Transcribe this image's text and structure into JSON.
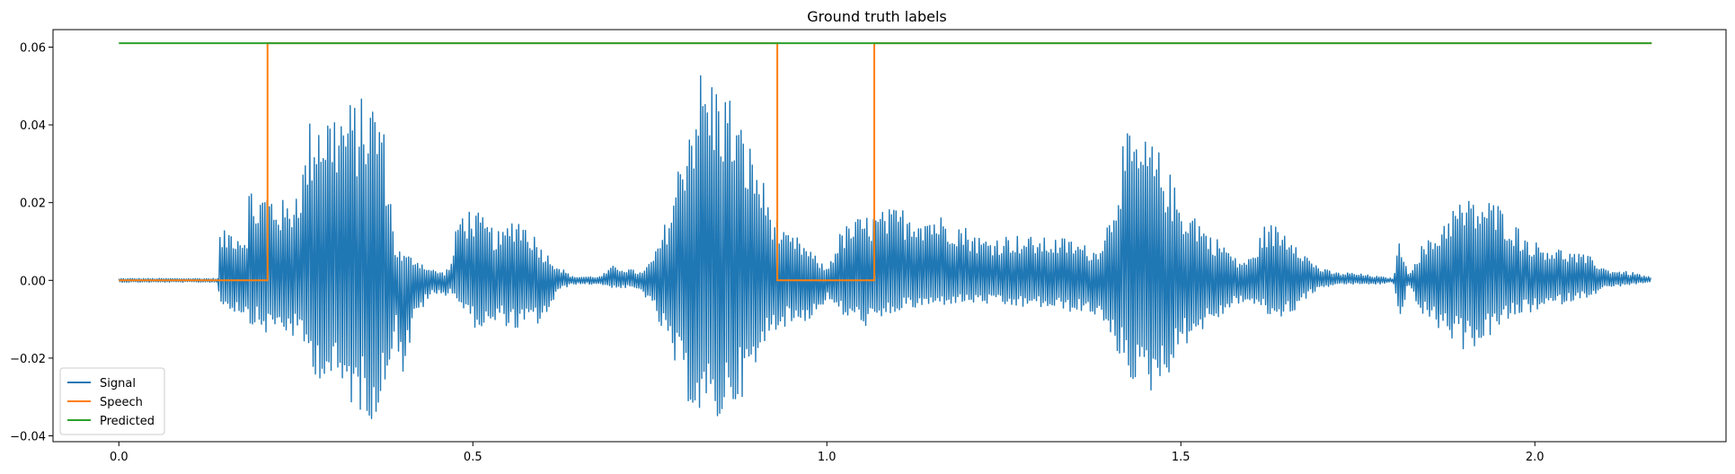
{
  "chart_data": {
    "type": "line",
    "title": "Ground truth labels",
    "xlabel": "",
    "ylabel": "",
    "xlim": [
      -0.093,
      2.27
    ],
    "ylim": [
      -0.0415,
      0.0645
    ],
    "xticks": [
      0.0,
      0.5,
      1.0,
      1.5,
      2.0
    ],
    "xtick_labels": [
      "0.0",
      "0.5",
      "1.0",
      "1.5",
      "2.0"
    ],
    "yticks": [
      -0.04,
      -0.02,
      0.0,
      0.02,
      0.04,
      0.06
    ],
    "ytick_labels": [
      "−0.04",
      "−0.02",
      "0.00",
      "0.02",
      "0.04",
      "0.06"
    ],
    "grid": false,
    "legend_position": "lower-left",
    "series": [
      {
        "name": "Signal",
        "color": "#1f77b4",
        "kind": "waveform",
        "x_start": 0.0,
        "x_end": 2.165,
        "envelope": {
          "x": [
            0.0,
            0.14,
            0.142,
            0.16,
            0.18,
            0.185,
            0.19,
            0.2,
            0.21,
            0.22,
            0.24,
            0.26,
            0.27,
            0.28,
            0.3,
            0.32,
            0.34,
            0.36,
            0.37,
            0.38,
            0.39,
            0.4,
            0.42,
            0.44,
            0.46,
            0.47,
            0.48,
            0.5,
            0.52,
            0.54,
            0.56,
            0.58,
            0.6,
            0.62,
            0.64,
            0.66,
            0.68,
            0.7,
            0.72,
            0.74,
            0.76,
            0.78,
            0.8,
            0.82,
            0.84,
            0.86,
            0.88,
            0.9,
            0.92,
            0.94,
            0.96,
            0.98,
            1.0,
            1.02,
            1.04,
            1.06,
            1.08,
            1.1,
            1.14,
            1.18,
            1.22,
            1.26,
            1.3,
            1.34,
            1.38,
            1.4,
            1.42,
            1.44,
            1.46,
            1.48,
            1.5,
            1.52,
            1.54,
            1.56,
            1.58,
            1.6,
            1.62,
            1.64,
            1.66,
            1.68,
            1.7,
            1.72,
            1.74,
            1.76,
            1.78,
            1.8,
            1.81,
            1.82,
            1.84,
            1.86,
            1.88,
            1.9,
            1.92,
            1.94,
            1.96,
            1.98,
            2.0,
            2.02,
            2.04,
            2.06,
            2.08,
            2.1,
            2.14,
            2.165
          ],
          "upper": [
            0.0005,
            0.0005,
            0.012,
            0.014,
            0.012,
            0.028,
            0.02,
            0.023,
            0.024,
            0.022,
            0.02,
            0.03,
            0.042,
            0.046,
            0.045,
            0.046,
            0.047,
            0.048,
            0.046,
            0.03,
            0.01,
            0.007,
            0.006,
            0.003,
            0.002,
            0.005,
            0.018,
            0.019,
            0.015,
            0.012,
            0.018,
            0.014,
            0.008,
            0.004,
            0.001,
            0.001,
            0.001,
            0.004,
            0.003,
            0.002,
            0.008,
            0.02,
            0.04,
            0.055,
            0.053,
            0.05,
            0.04,
            0.032,
            0.02,
            0.012,
            0.011,
            0.007,
            0.003,
            0.013,
            0.016,
            0.017,
            0.018,
            0.019,
            0.018,
            0.016,
            0.011,
            0.012,
            0.011,
            0.011,
            0.008,
            0.017,
            0.038,
            0.037,
            0.036,
            0.03,
            0.02,
            0.018,
            0.012,
            0.01,
            0.005,
            0.006,
            0.015,
            0.014,
            0.012,
            0.006,
            0.003,
            0.002,
            0.002,
            0.0015,
            0.001,
            0.0005,
            0.012,
            0.0015,
            0.009,
            0.012,
            0.019,
            0.021,
            0.021,
            0.021,
            0.018,
            0.013,
            0.01,
            0.009,
            0.008,
            0.007,
            0.006,
            0.003,
            0.002,
            0.0007
          ],
          "lower": [
            -0.0005,
            -0.0005,
            -0.006,
            -0.008,
            -0.009,
            -0.012,
            -0.011,
            -0.013,
            -0.014,
            -0.013,
            -0.014,
            -0.017,
            -0.022,
            -0.025,
            -0.027,
            -0.031,
            -0.034,
            -0.036,
            -0.034,
            -0.025,
            -0.012,
            -0.026,
            -0.01,
            -0.004,
            -0.004,
            -0.003,
            -0.006,
            -0.012,
            -0.013,
            -0.011,
            -0.013,
            -0.012,
            -0.011,
            -0.003,
            -0.001,
            -0.001,
            -0.001,
            -0.002,
            -0.002,
            -0.003,
            -0.01,
            -0.02,
            -0.03,
            -0.036,
            -0.039,
            -0.034,
            -0.03,
            -0.025,
            -0.013,
            -0.012,
            -0.011,
            -0.01,
            -0.005,
            -0.009,
            -0.011,
            -0.012,
            -0.011,
            -0.008,
            -0.007,
            -0.006,
            -0.006,
            -0.007,
            -0.007,
            -0.008,
            -0.009,
            -0.016,
            -0.022,
            -0.029,
            -0.029,
            -0.025,
            -0.018,
            -0.014,
            -0.012,
            -0.009,
            -0.006,
            -0.006,
            -0.009,
            -0.01,
            -0.008,
            -0.004,
            -0.002,
            -0.001,
            -0.001,
            -0.001,
            -0.001,
            -0.0005,
            -0.012,
            -0.001,
            -0.009,
            -0.012,
            -0.015,
            -0.018,
            -0.017,
            -0.014,
            -0.011,
            -0.009,
            -0.008,
            -0.007,
            -0.006,
            -0.005,
            -0.004,
            -0.002,
            -0.001,
            -0.0005
          ]
        }
      },
      {
        "name": "Speech",
        "color": "#ff7f0e",
        "kind": "step",
        "x": [
          0.0,
          0.21,
          0.21,
          0.93,
          0.93,
          1.067,
          1.067,
          2.165
        ],
        "y": [
          0.0,
          0.0,
          0.061,
          0.061,
          0.0,
          0.0,
          0.061,
          0.061
        ]
      },
      {
        "name": "Predicted",
        "color": "#2ca02c",
        "kind": "line",
        "x": [
          0.0,
          2.165
        ],
        "y": [
          0.061,
          0.061
        ]
      }
    ]
  }
}
